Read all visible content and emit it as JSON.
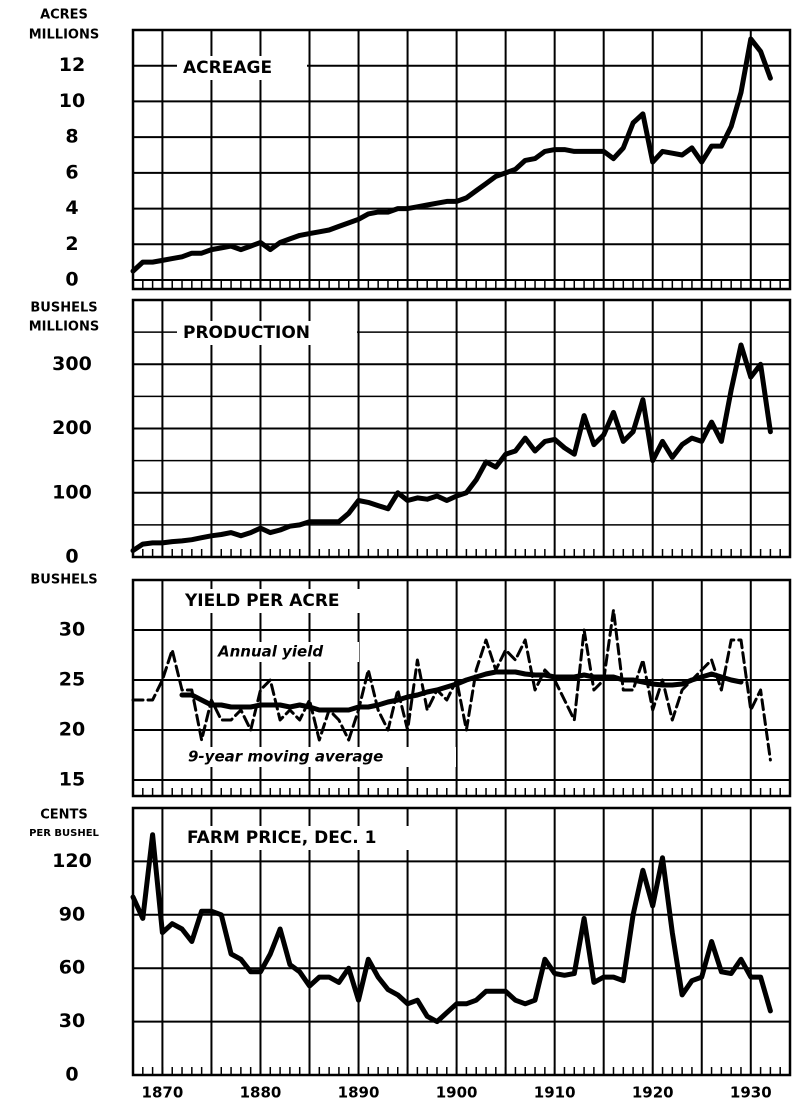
{
  "chart_data": [
    {
      "type": "line",
      "title": "ACREAGE",
      "y_label": [
        "ACRES",
        "MILLIONS"
      ],
      "x": [
        1867,
        1868,
        1869,
        1870,
        1871,
        1872,
        1873,
        1874,
        1875,
        1876,
        1877,
        1878,
        1879,
        1880,
        1881,
        1882,
        1883,
        1884,
        1885,
        1886,
        1887,
        1888,
        1889,
        1890,
        1891,
        1892,
        1893,
        1894,
        1895,
        1896,
        1897,
        1898,
        1899,
        1900,
        1901,
        1902,
        1903,
        1904,
        1905,
        1906,
        1907,
        1908,
        1909,
        1910,
        1911,
        1912,
        1913,
        1914,
        1915,
        1916,
        1917,
        1918,
        1919,
        1920,
        1921,
        1922,
        1923,
        1924,
        1925,
        1926,
        1927,
        1928,
        1929,
        1930,
        1931,
        1932,
        1933
      ],
      "series": [
        {
          "color": "#000000",
          "dash": false,
          "values": [
            0.5,
            1.0,
            1.0,
            1.1,
            1.2,
            1.3,
            1.5,
            1.5,
            1.7,
            1.8,
            1.9,
            1.7,
            1.9,
            2.1,
            1.7,
            2.1,
            2.3,
            2.5,
            2.6,
            2.7,
            2.8,
            3.0,
            3.2,
            3.4,
            3.7,
            3.8,
            3.8,
            4.0,
            4.0,
            4.1,
            4.2,
            4.3,
            4.4,
            4.4,
            4.6,
            5.0,
            5.4,
            5.8,
            6.0,
            6.2,
            6.7,
            6.8,
            7.2,
            7.3,
            7.3,
            7.2,
            7.2,
            7.2,
            7.2,
            6.8,
            7.4,
            8.8,
            9.3,
            6.6,
            7.2,
            7.1,
            7.0,
            7.4,
            6.6,
            7.5,
            7.5,
            8.6,
            10.5,
            13.5,
            12.8,
            11.3,
            null
          ]
        }
      ],
      "xlim": [
        1867,
        1934
      ],
      "xticks": [
        1870,
        1880,
        1890,
        1900,
        1910,
        1920,
        1930
      ],
      "ylim": [
        0,
        14
      ],
      "yticks": [
        0,
        2,
        4,
        6,
        8,
        10,
        12
      ],
      "grid": true,
      "minor_grid": false
    },
    {
      "type": "line",
      "title": "PRODUCTION",
      "y_label": [
        "BUSHELS",
        "MILLIONS"
      ],
      "x": [
        1867,
        1868,
        1869,
        1870,
        1871,
        1872,
        1873,
        1874,
        1875,
        1876,
        1877,
        1878,
        1879,
        1880,
        1881,
        1882,
        1883,
        1884,
        1885,
        1886,
        1887,
        1888,
        1889,
        1890,
        1891,
        1892,
        1893,
        1894,
        1895,
        1896,
        1897,
        1898,
        1899,
        1900,
        1901,
        1902,
        1903,
        1904,
        1905,
        1906,
        1907,
        1908,
        1909,
        1910,
        1911,
        1912,
        1913,
        1914,
        1915,
        1916,
        1917,
        1918,
        1919,
        1920,
        1921,
        1922,
        1923,
        1924,
        1925,
        1926,
        1927,
        1928,
        1929,
        1930,
        1931,
        1932,
        1933
      ],
      "series": [
        {
          "color": "#000000",
          "dash": false,
          "values": [
            10,
            20,
            22,
            22,
            24,
            25,
            27,
            30,
            33,
            35,
            38,
            33,
            38,
            45,
            38,
            42,
            48,
            50,
            55,
            55,
            55,
            55,
            68,
            88,
            85,
            80,
            75,
            100,
            88,
            92,
            90,
            95,
            88,
            95,
            100,
            120,
            148,
            140,
            160,
            165,
            185,
            165,
            180,
            183,
            170,
            160,
            220,
            175,
            190,
            225,
            180,
            195,
            245,
            150,
            180,
            155,
            175,
            185,
            180,
            210,
            180,
            260,
            330,
            280,
            300,
            195,
            null
          ]
        }
      ],
      "xlim": [
        1867,
        1934
      ],
      "xticks": [
        1870,
        1880,
        1890,
        1900,
        1910,
        1920,
        1930
      ],
      "ylim": [
        0,
        400
      ],
      "yticks": [
        0,
        100,
        200,
        300
      ],
      "grid": true,
      "minor_grid": true
    },
    {
      "type": "line",
      "title": "YIELD PER ACRE",
      "y_label": [
        "BUSHELS"
      ],
      "x": [
        1867,
        1868,
        1869,
        1870,
        1871,
        1872,
        1873,
        1874,
        1875,
        1876,
        1877,
        1878,
        1879,
        1880,
        1881,
        1882,
        1883,
        1884,
        1885,
        1886,
        1887,
        1888,
        1889,
        1890,
        1891,
        1892,
        1893,
        1894,
        1895,
        1896,
        1897,
        1898,
        1899,
        1900,
        1901,
        1902,
        1903,
        1904,
        1905,
        1906,
        1907,
        1908,
        1909,
        1910,
        1911,
        1912,
        1913,
        1914,
        1915,
        1916,
        1917,
        1918,
        1919,
        1920,
        1921,
        1922,
        1923,
        1924,
        1925,
        1926,
        1927,
        1928,
        1929,
        1930,
        1931,
        1932,
        1933
      ],
      "series": [
        {
          "name": "Annual yield",
          "color": "#000000",
          "dash": true,
          "values": [
            23,
            23,
            23,
            25,
            28,
            24,
            24,
            19,
            23,
            21,
            21,
            22,
            20,
            24,
            25,
            21,
            22,
            21,
            23,
            19,
            22,
            21,
            19,
            22,
            26,
            22,
            20,
            24,
            20,
            27,
            22,
            24,
            23,
            25,
            20,
            26,
            29,
            26,
            28,
            27,
            29,
            24,
            26,
            25,
            23,
            21,
            30,
            24,
            25,
            32,
            24,
            24,
            27,
            22,
            25,
            21,
            24,
            25,
            26,
            27,
            24,
            29,
            29,
            22,
            24,
            17,
            null
          ]
        },
        {
          "name": "9-year moving average",
          "color": "#000000",
          "dash": false,
          "values": [
            null,
            null,
            null,
            null,
            null,
            23.5,
            23.5,
            23,
            22.5,
            22.5,
            22.3,
            22.3,
            22.3,
            22.5,
            22.5,
            22.5,
            22.3,
            22.5,
            22.3,
            22,
            22,
            22,
            22,
            22.3,
            22.3,
            22.5,
            22.8,
            23,
            23.3,
            23.5,
            23.8,
            24,
            24.3,
            24.6,
            25,
            25.3,
            25.6,
            25.8,
            25.8,
            25.8,
            25.6,
            25.5,
            25.5,
            25.3,
            25.3,
            25.3,
            25.5,
            25.3,
            25.3,
            25.3,
            25,
            25,
            24.8,
            24.6,
            24.5,
            24.5,
            24.6,
            25,
            25.3,
            25.6,
            25.3,
            25,
            24.8,
            null,
            null,
            null,
            null
          ]
        }
      ],
      "xlim": [
        1867,
        1934
      ],
      "xticks": [
        1870,
        1880,
        1890,
        1900,
        1910,
        1920,
        1930
      ],
      "ylim": [
        15,
        35
      ],
      "yticks": [
        15,
        20,
        25,
        30
      ],
      "grid": true,
      "minor_grid": false
    },
    {
      "type": "line",
      "title": "FARM PRICE, DEC. 1",
      "y_label": [
        "CENTS",
        "PER BUSHEL"
      ],
      "x": [
        1867,
        1868,
        1869,
        1870,
        1871,
        1872,
        1873,
        1874,
        1875,
        1876,
        1877,
        1878,
        1879,
        1880,
        1881,
        1882,
        1883,
        1884,
        1885,
        1886,
        1887,
        1888,
        1889,
        1890,
        1891,
        1892,
        1893,
        1894,
        1895,
        1896,
        1897,
        1898,
        1899,
        1900,
        1901,
        1902,
        1903,
        1904,
        1905,
        1906,
        1907,
        1908,
        1909,
        1910,
        1911,
        1912,
        1913,
        1914,
        1915,
        1916,
        1917,
        1918,
        1919,
        1920,
        1921,
        1922,
        1923,
        1924,
        1925,
        1926,
        1927,
        1928,
        1929,
        1930,
        1931,
        1932,
        1933
      ],
      "series": [
        {
          "color": "#000000",
          "dash": false,
          "values": [
            100,
            88,
            135,
            80,
            85,
            82,
            75,
            92,
            92,
            90,
            68,
            65,
            58,
            58,
            68,
            82,
            62,
            58,
            50,
            55,
            55,
            52,
            60,
            42,
            65,
            55,
            48,
            45,
            40,
            42,
            33,
            30,
            35,
            40,
            40,
            42,
            47,
            47,
            47,
            42,
            40,
            42,
            65,
            57,
            56,
            57,
            88,
            52,
            55,
            55,
            53,
            90,
            115,
            95,
            122,
            80,
            45,
            53,
            55,
            75,
            58,
            57,
            65,
            55,
            55,
            36,
            null
          ]
        }
      ],
      "xlim": [
        1867,
        1934
      ],
      "xticks": [
        1870,
        1880,
        1890,
        1900,
        1910,
        1920,
        1930
      ],
      "ylim": [
        0,
        150
      ],
      "yticks": [
        0,
        30,
        60,
        90,
        120
      ],
      "grid": true,
      "minor_grid": false
    }
  ]
}
